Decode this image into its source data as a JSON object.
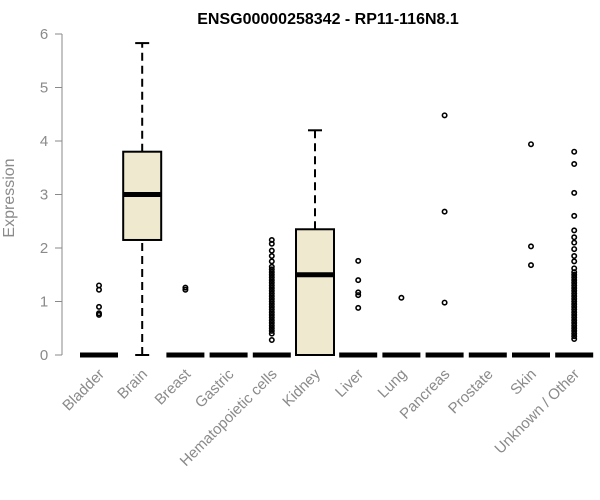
{
  "chart_data": {
    "type": "box",
    "title": "ENSG00000258342 - RP11-116N8.1",
    "ylabel": "Expression",
    "xlabel": "",
    "ylim": [
      0,
      6
    ],
    "yticks": [
      0,
      1,
      2,
      3,
      4,
      5,
      6
    ],
    "box_fill": "#efe9cf",
    "categories": [
      "Bladder",
      "Brain",
      "Breast",
      "Gastric",
      "Hematopoietic cells",
      "Kidney",
      "Liver",
      "Lung",
      "Pancreas",
      "Prostate",
      "Skin",
      "Unknown / Other"
    ],
    "boxes": [
      {
        "q1": 0,
        "median": 0,
        "q3": 0,
        "whisker_low": 0,
        "whisker_high": 0,
        "outliers": [
          0.75,
          0.78,
          0.9,
          1.22,
          1.3
        ]
      },
      {
        "q1": 2.15,
        "median": 3.0,
        "q3": 3.8,
        "whisker_low": 0,
        "whisker_high": 5.83,
        "outliers": []
      },
      {
        "q1": 0,
        "median": 0,
        "q3": 0,
        "whisker_low": 0,
        "whisker_high": 0,
        "outliers": [
          1.22,
          1.26
        ]
      },
      {
        "q1": 0,
        "median": 0,
        "q3": 0,
        "whisker_low": 0,
        "whisker_high": 0,
        "outliers": []
      },
      {
        "q1": 0,
        "median": 0,
        "q3": 0,
        "whisker_low": 0,
        "whisker_high": 0,
        "outliers": [
          0.28,
          0.4,
          0.45,
          0.5,
          0.55,
          0.6,
          0.65,
          0.7,
          0.75,
          0.8,
          0.85,
          0.9,
          0.95,
          1.0,
          1.05,
          1.1,
          1.15,
          1.2,
          1.25,
          1.3,
          1.35,
          1.4,
          1.45,
          1.5,
          1.55,
          1.6,
          1.65,
          1.75,
          1.85,
          1.95,
          2.08,
          2.15
        ]
      },
      {
        "q1": 0,
        "median": 1.5,
        "q3": 2.35,
        "whisker_low": 0,
        "whisker_high": 4.2,
        "outliers": []
      },
      {
        "q1": 0,
        "median": 0,
        "q3": 0,
        "whisker_low": 0,
        "whisker_high": 0,
        "outliers": [
          0.88,
          1.12,
          1.17,
          1.4,
          1.76
        ]
      },
      {
        "q1": 0,
        "median": 0,
        "q3": 0,
        "whisker_low": 0,
        "whisker_high": 0,
        "outliers": [
          1.07
        ]
      },
      {
        "q1": 0,
        "median": 0,
        "q3": 0,
        "whisker_low": 0,
        "whisker_high": 0,
        "outliers": [
          0.98,
          2.68,
          4.48
        ]
      },
      {
        "q1": 0,
        "median": 0,
        "q3": 0,
        "whisker_low": 0,
        "whisker_high": 0,
        "outliers": []
      },
      {
        "q1": 0,
        "median": 0,
        "q3": 0,
        "whisker_low": 0,
        "whisker_high": 0,
        "outliers": [
          1.68,
          2.03,
          3.94
        ]
      },
      {
        "q1": 0,
        "median": 0,
        "q3": 0,
        "whisker_low": 0,
        "whisker_high": 0,
        "outliers": [
          0.3,
          0.35,
          0.4,
          0.45,
          0.5,
          0.55,
          0.6,
          0.65,
          0.7,
          0.75,
          0.8,
          0.85,
          0.9,
          0.95,
          1.0,
          1.05,
          1.1,
          1.15,
          1.2,
          1.25,
          1.3,
          1.35,
          1.4,
          1.45,
          1.5,
          1.55,
          1.62,
          1.75,
          1.85,
          1.98,
          2.1,
          2.2,
          2.33,
          2.6,
          3.03,
          3.57,
          3.8
        ]
      }
    ]
  }
}
